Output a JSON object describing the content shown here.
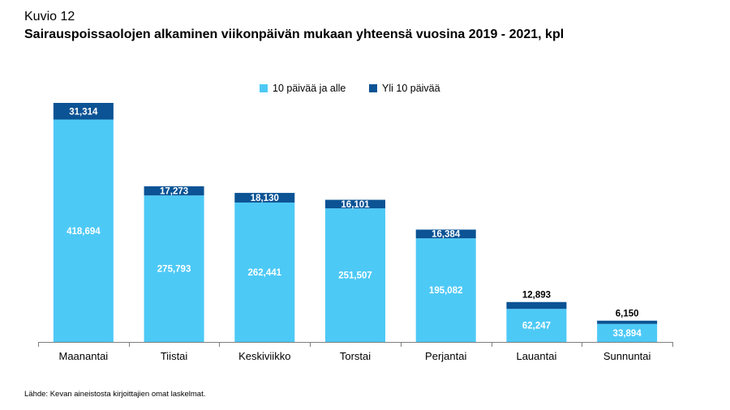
{
  "header": {
    "figure_label": "Kuvio 12",
    "title": "Sairauspoissaolojen alkaminen viikonpäivän mukaan yhteensä vuosina 2019 - 2021, kpl"
  },
  "footer": {
    "source": "Lähde: Kevan aineistosta kirjoittajien omat laskelmat."
  },
  "chart_data": {
    "type": "bar",
    "stacked": true,
    "categories": [
      "Maanantai",
      "Tiistai",
      "Keskiviikko",
      "Torstai",
      "Perjantai",
      "Lauantai",
      "Sunnuntai"
    ],
    "series": [
      {
        "name": "10 päivää ja alle",
        "color": "#4dc9f6",
        "values": [
          418694,
          275793,
          262441,
          251507,
          195082,
          62247,
          33894
        ],
        "labels": [
          "418,694",
          "275,793",
          "262,441",
          "251,507",
          "195,082",
          "62,247",
          "33,894"
        ]
      },
      {
        "name": "Yli 10 päivää",
        "color": "#0b5394",
        "values": [
          31314,
          17273,
          18130,
          16101,
          16384,
          12893,
          6150
        ],
        "labels": [
          "31,314",
          "17,273",
          "18,130",
          "16,101",
          "16,384",
          "12,893",
          "6,150"
        ]
      }
    ],
    "ylim": [
      0,
      450008
    ],
    "grid": false,
    "legend_position": "top-center"
  }
}
